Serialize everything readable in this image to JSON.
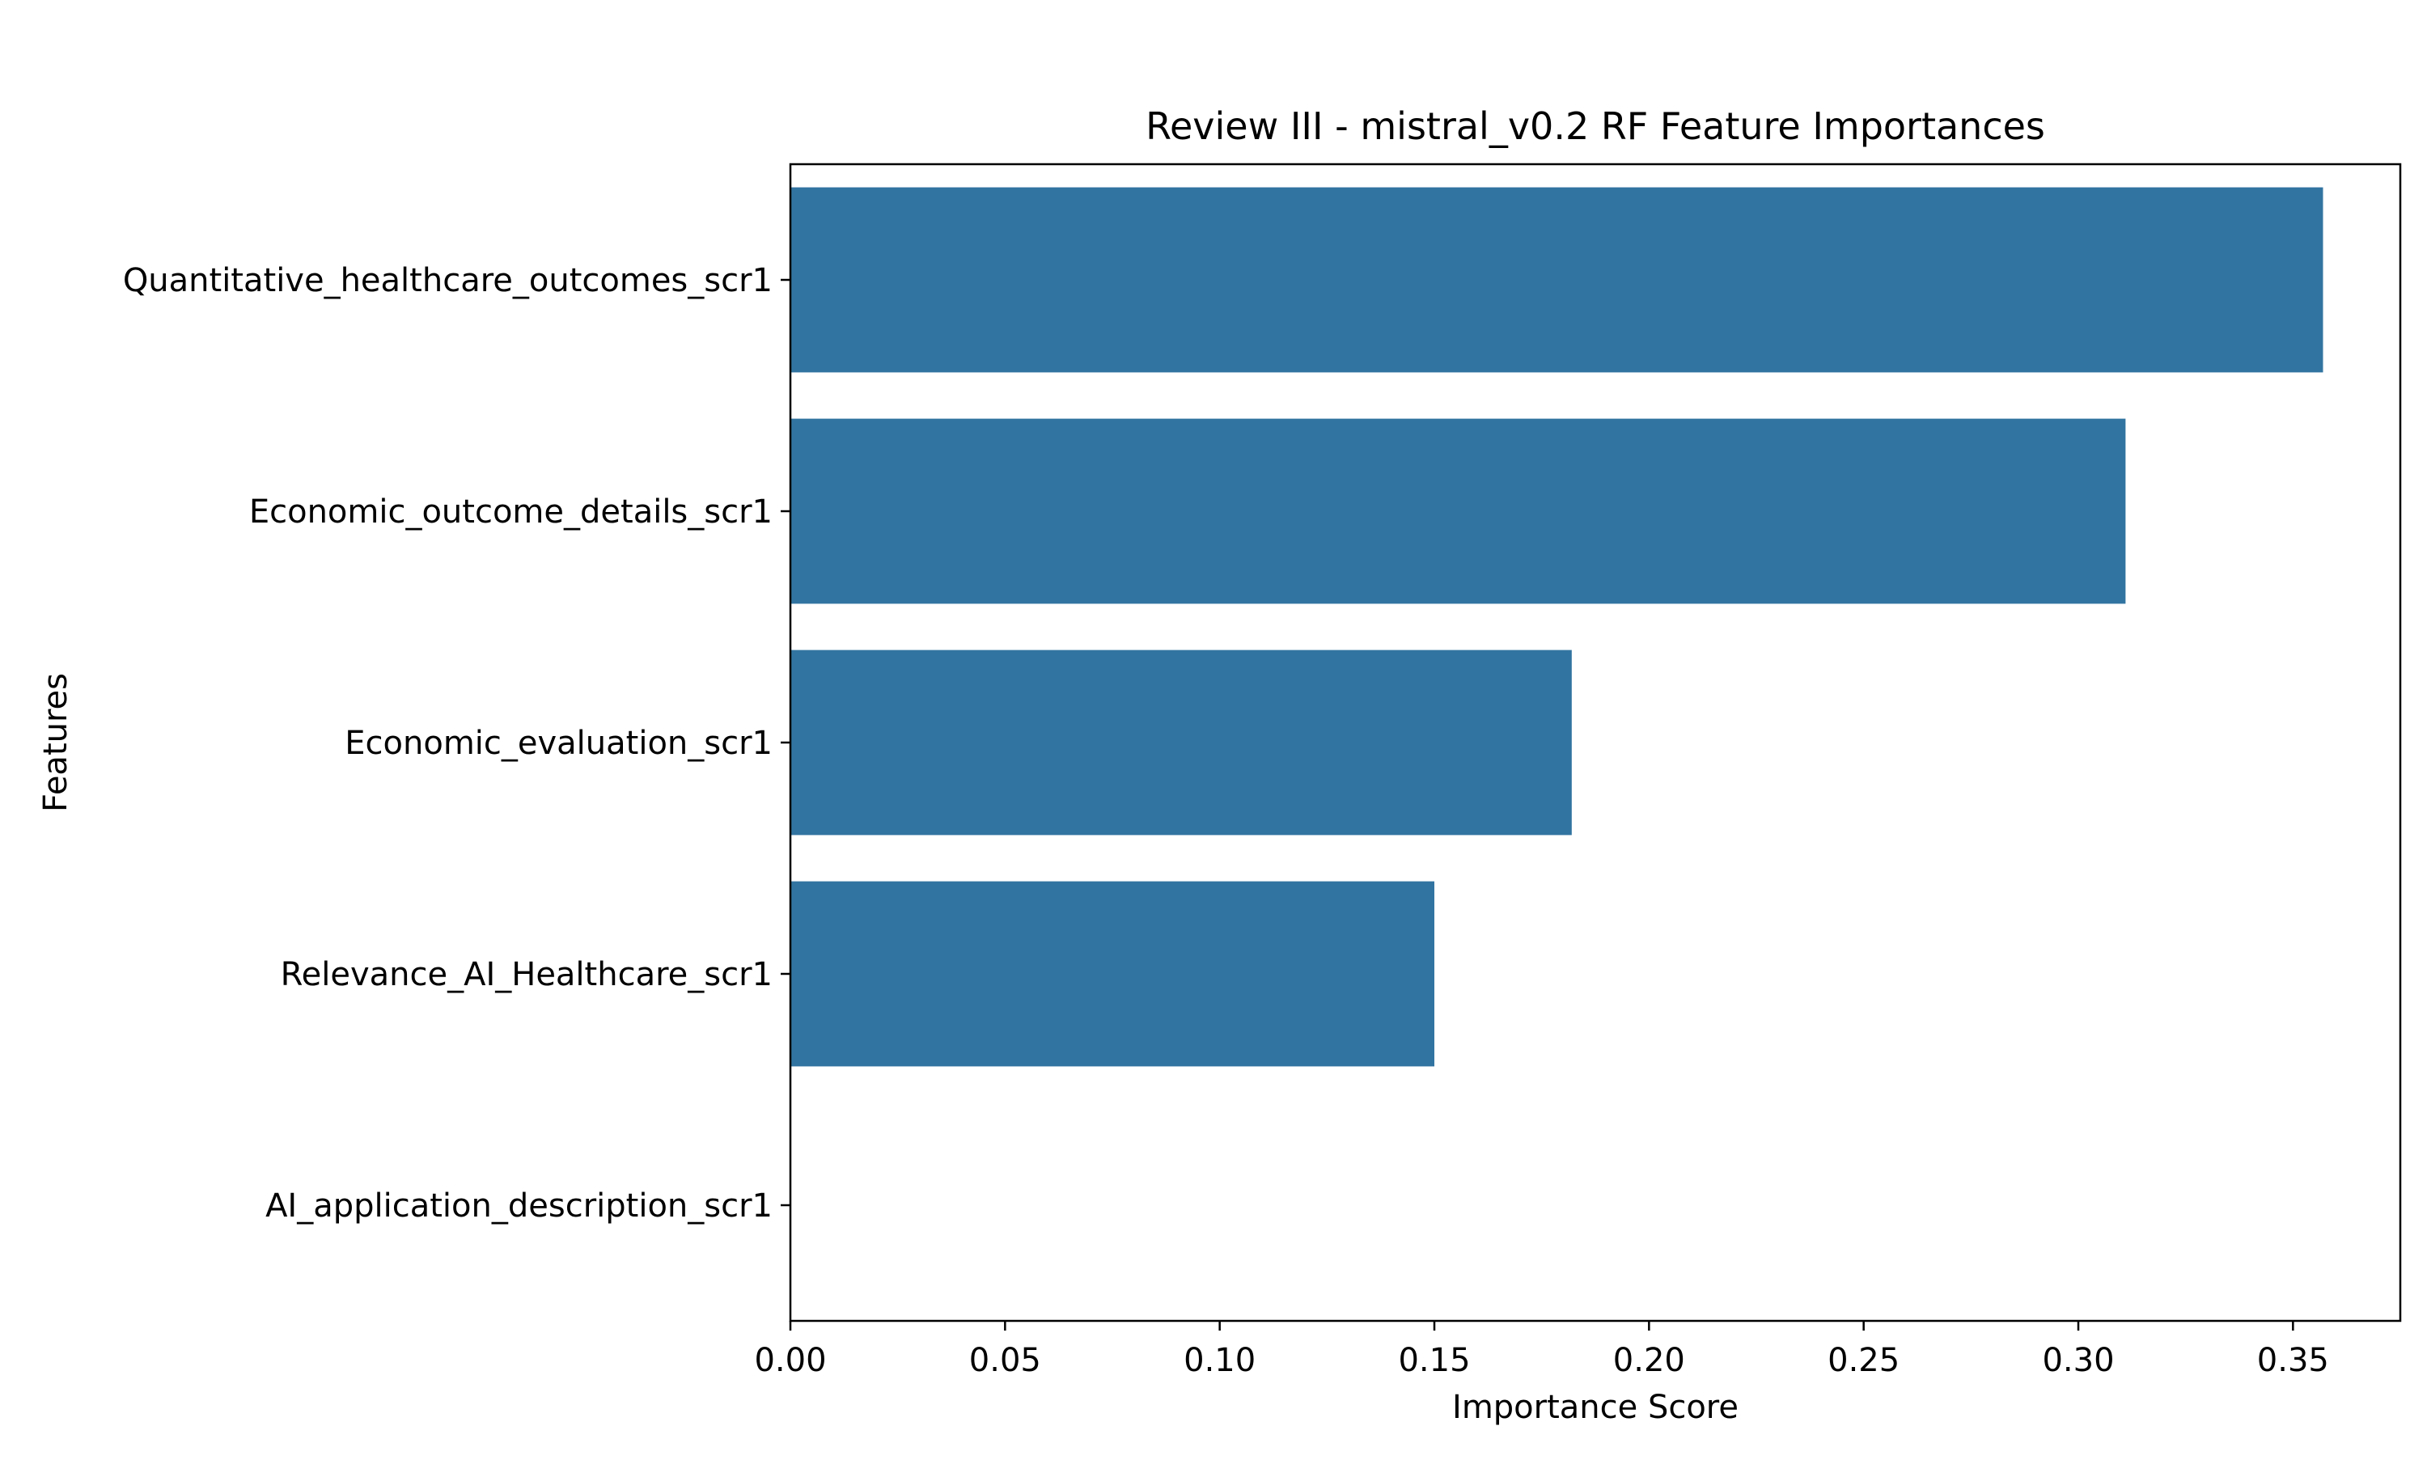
{
  "chart_data": {
    "type": "bar",
    "orientation": "horizontal",
    "title": "Review III - mistral_v0.2 RF Feature Importances",
    "xlabel": "Importance Score",
    "ylabel": "Features",
    "categories": [
      "Quantitative_healthcare_outcomes_scr1",
      "Economic_outcome_details_scr1",
      "Economic_evaluation_scr1",
      "Relevance_AI_Healthcare_scr1",
      "AI_application_description_scr1"
    ],
    "values": [
      0.357,
      0.311,
      0.182,
      0.15,
      0.0
    ],
    "xlim": [
      0.0,
      0.375
    ],
    "xticks": [
      "0.00",
      "0.05",
      "0.10",
      "0.15",
      "0.20",
      "0.25",
      "0.30",
      "0.35"
    ],
    "grid": false,
    "legend": "none",
    "bar_color": "#3274a1"
  }
}
